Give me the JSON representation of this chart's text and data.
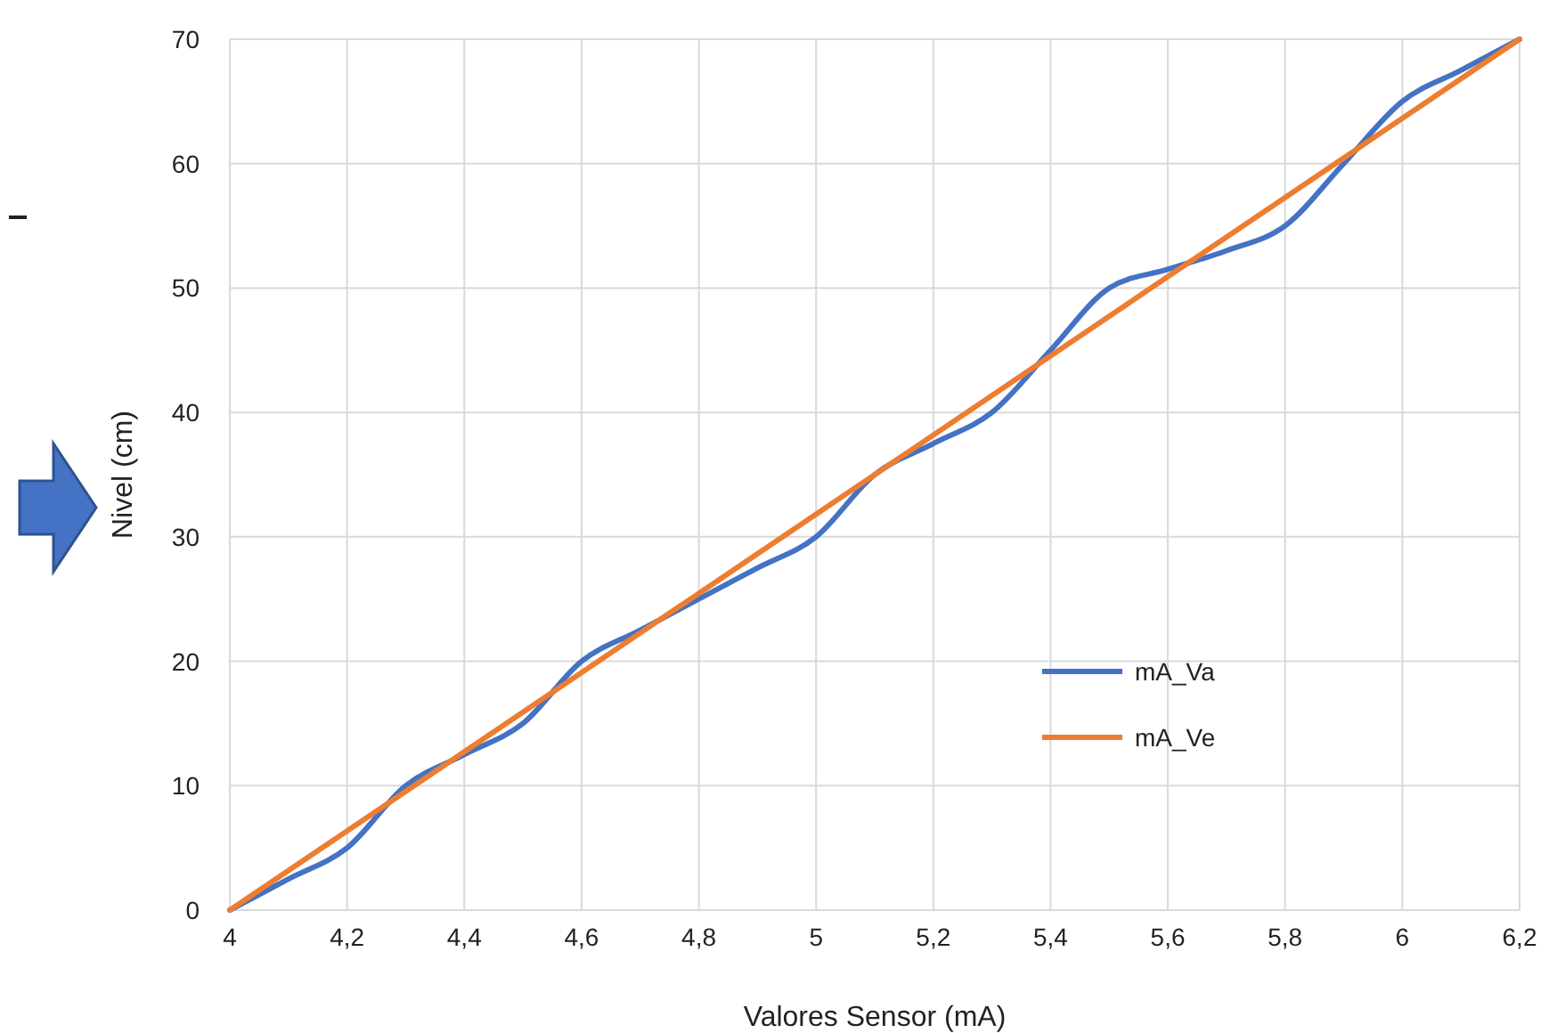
{
  "chart_data": {
    "type": "line",
    "xlabel": "Valores Sensor (mA)",
    "ylabel": "Nivel (cm)",
    "x": [
      4,
      4.1,
      4.2,
      4.3,
      4.4,
      4.5,
      4.6,
      4.7,
      4.8,
      4.9,
      5,
      5.1,
      5.2,
      5.3,
      5.4,
      5.5,
      5.6,
      5.7,
      5.8,
      5.9,
      6,
      6.1,
      6.2
    ],
    "series": [
      {
        "name": "mA_Va",
        "color": "#4472c4",
        "values": [
          0,
          2.5,
          5,
          10,
          12.5,
          15,
          20,
          22.5,
          25,
          27.5,
          30,
          35,
          37.5,
          40,
          45,
          50,
          51.5,
          53,
          55,
          60,
          65,
          67.5,
          70
        ]
      },
      {
        "name": "mA_Ve",
        "color": "#ed7d31",
        "x": [
          4,
          6.2
        ],
        "values": [
          0,
          70
        ]
      }
    ],
    "xlim": [
      4,
      6.2
    ],
    "xticks": [
      4,
      {
        "value": 4.2,
        "label": "4,2"
      },
      {
        "value": 4.4,
        "label": "4,4"
      },
      {
        "value": 4.6,
        "label": "4,6"
      },
      {
        "value": 4.8,
        "label": "4,8"
      },
      5,
      {
        "value": 5.2,
        "label": "5,2"
      },
      {
        "value": 5.4,
        "label": "5,4"
      },
      {
        "value": 5.6,
        "label": "5,6"
      },
      {
        "value": 5.8,
        "label": "5,8"
      },
      6,
      {
        "value": 6.2,
        "label": "6,2"
      }
    ],
    "ylim": [
      0,
      70
    ],
    "yticks": [
      0,
      10,
      20,
      30,
      40,
      50,
      60,
      70
    ],
    "grid": true,
    "legend": "bottom right",
    "marker": "none",
    "line_style": "solid"
  }
}
